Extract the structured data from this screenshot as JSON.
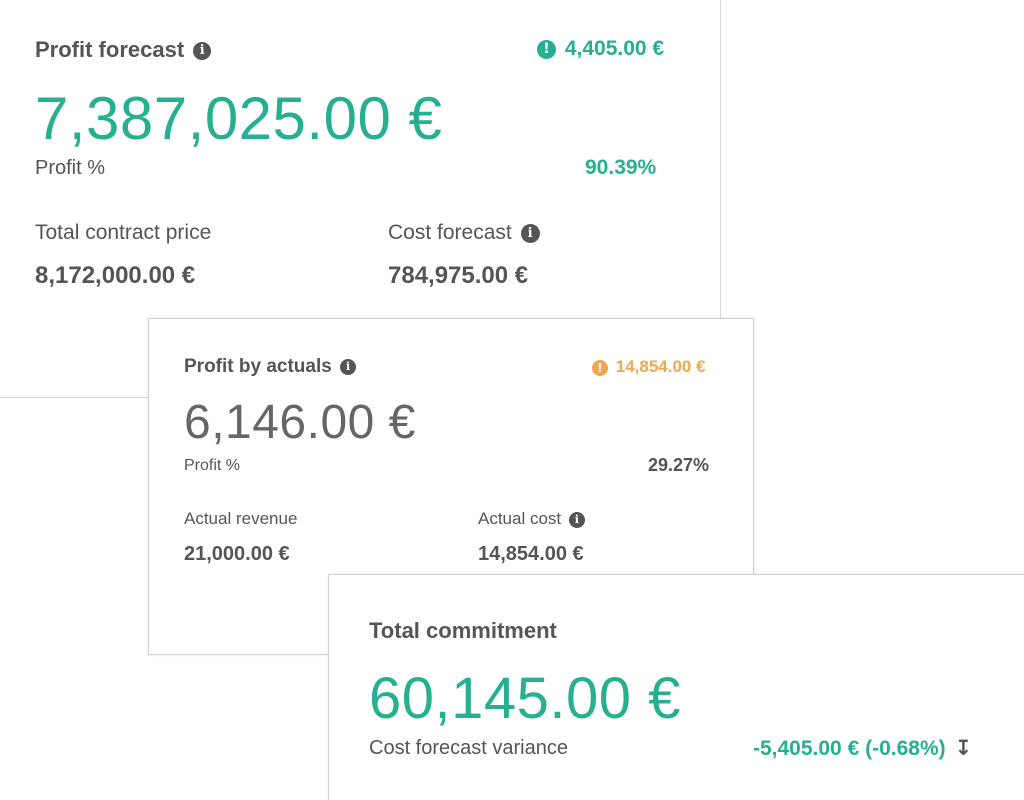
{
  "profit_forecast": {
    "title": "Profit forecast",
    "alert_value": "4,405.00 €",
    "amount": "7,387,025.00 €",
    "profit_pct_label": "Profit %",
    "profit_pct_value": "90.39%",
    "contract_price_label": "Total contract price",
    "contract_price_value": "8,172,000.00 €",
    "cost_forecast_label": "Cost forecast",
    "cost_forecast_value": "784,975.00 €"
  },
  "profit_by_actuals": {
    "title": "Profit by actuals",
    "alert_value": "14,854.00 €",
    "amount": "6,146.00 €",
    "profit_pct_label": "Profit %",
    "profit_pct_value": "29.27%",
    "revenue_label": "Actual revenue",
    "revenue_value": "21,000.00 €",
    "cost_label": "Actual cost",
    "cost_value": "14,854.00 €"
  },
  "total_commitment": {
    "title": "Total commitment",
    "amount": "60,145.00 €",
    "variance_label": "Cost forecast variance",
    "variance_value": "-5,405.00 € (-0.68%)",
    "variance_arrow": "↧"
  },
  "icons": {
    "info": "info-icon",
    "alert": "exclamation-circle-icon",
    "trend": "arrow-down-icon"
  },
  "colors": {
    "positive": "#26b08f",
    "warning": "#f0a751",
    "text": "#555555"
  }
}
